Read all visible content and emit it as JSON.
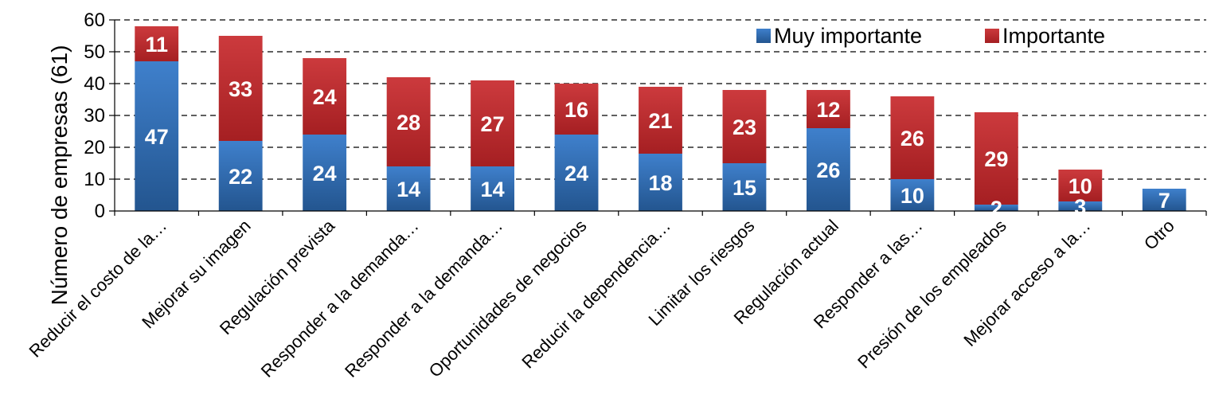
{
  "chart_data": {
    "type": "bar",
    "stacked": true,
    "ylabel": "Número de empresas (61)",
    "ylim": [
      0,
      60
    ],
    "yticks": [
      0,
      10,
      20,
      30,
      40,
      50,
      60
    ],
    "grid": "horizontal dashed",
    "legend_position": "top-right",
    "categories": [
      "Reducir el costo de la…",
      "Mejorar su imagen",
      "Regulación prevista",
      "Responder a la demanda…",
      "Responder a la demanda…",
      "Oportunidades de negocios",
      "Reducir la dependencia…",
      "Limitar los riesgos",
      "Regulación actual",
      "Responder a las…",
      "Presión de los empleados",
      "Mejorar acceso a la…",
      "Otro"
    ],
    "series": [
      {
        "name": "Muy importante",
        "color": "#2E6CB5",
        "values": [
          47,
          22,
          24,
          14,
          14,
          24,
          18,
          15,
          26,
          10,
          2,
          3,
          7
        ]
      },
      {
        "name": "Importante",
        "color": "#C0282C",
        "values": [
          11,
          33,
          24,
          28,
          27,
          16,
          21,
          23,
          12,
          26,
          29,
          10,
          0
        ]
      }
    ]
  }
}
